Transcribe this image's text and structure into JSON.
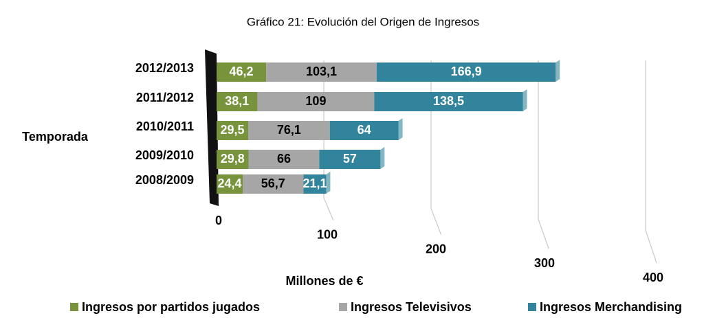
{
  "chart_data": {
    "type": "bar",
    "orientation": "horizontal",
    "stacked": true,
    "title": "Gráfico 21: Evolución del Origen de Ingresos",
    "x_label": "Millones de €",
    "y_label": "Temporada",
    "categories": [
      "2012/2013",
      "2011/2012",
      "2010/2011",
      "2009/2010",
      "2008/2009"
    ],
    "series": [
      {
        "name": "Ingresos por partidos jugados",
        "color": "#77933c",
        "values": [
          46.2,
          38.1,
          29.5,
          29.8,
          24.4
        ],
        "value_labels": [
          "46,2",
          "38,1",
          "29,5",
          "29,8",
          "24,4"
        ]
      },
      {
        "name": "Ingresos Televisivos",
        "color": "#a6a6a6",
        "values": [
          103.1,
          109,
          76.1,
          66,
          56.7
        ],
        "value_labels": [
          "103,1",
          "109",
          "76,1",
          "66",
          "56,7"
        ]
      },
      {
        "name": "Ingresos Merchandising",
        "color": "#31849b",
        "values": [
          166.9,
          138.5,
          64,
          57,
          21.1
        ],
        "value_labels": [
          "166,9",
          "138,5",
          "64",
          "57",
          "21,1"
        ]
      }
    ],
    "xlim": [
      0,
      400
    ],
    "xticks": [
      0,
      100,
      200,
      300,
      400
    ],
    "grid": true,
    "legend": "bottom"
  }
}
